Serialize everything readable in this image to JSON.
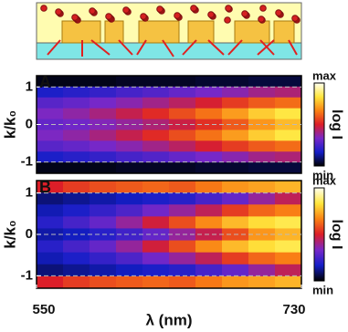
{
  "chart_data": [
    {
      "type": "heatmap",
      "panel_label": "A",
      "y_label": "k/k₀",
      "colorbar_label": "log I",
      "colorbar_max": "max",
      "colorbar_min": "min",
      "xlim": [
        550,
        730
      ],
      "ylim": [
        -1.3,
        1.3
      ],
      "yticks": [
        -1,
        0,
        1
      ],
      "grid": true,
      "z": [
        [
          0.02,
          0.02,
          0.02,
          0.03,
          0.03,
          0.03,
          0.04,
          0.04,
          0.05,
          0.05
        ],
        [
          0.18,
          0.2,
          0.22,
          0.25,
          0.27,
          0.3,
          0.33,
          0.36,
          0.4,
          0.42
        ],
        [
          0.28,
          0.3,
          0.33,
          0.36,
          0.4,
          0.44,
          0.49,
          0.55,
          0.6,
          0.63
        ],
        [
          0.34,
          0.37,
          0.41,
          0.46,
          0.52,
          0.58,
          0.64,
          0.71,
          0.79,
          0.84
        ],
        [
          0.3,
          0.32,
          0.35,
          0.38,
          0.42,
          0.47,
          0.53,
          0.6,
          0.7,
          0.76
        ],
        [
          0.34,
          0.37,
          0.41,
          0.46,
          0.52,
          0.58,
          0.64,
          0.71,
          0.79,
          0.84
        ],
        [
          0.28,
          0.3,
          0.33,
          0.36,
          0.4,
          0.44,
          0.49,
          0.55,
          0.6,
          0.63
        ],
        [
          0.18,
          0.2,
          0.22,
          0.25,
          0.27,
          0.3,
          0.33,
          0.36,
          0.4,
          0.42
        ],
        [
          0.02,
          0.02,
          0.02,
          0.03,
          0.03,
          0.03,
          0.04,
          0.04,
          0.05,
          0.05
        ]
      ]
    },
    {
      "type": "heatmap",
      "panel_label": "B",
      "y_label": "k/k₀",
      "colorbar_label": "log I",
      "colorbar_max": "max",
      "colorbar_min": "min",
      "x_label": "λ (nm)",
      "xlim": [
        550,
        730
      ],
      "xticks": [
        550,
        730
      ],
      "ylim": [
        -1.3,
        1.3
      ],
      "yticks": [
        -1,
        0,
        1
      ],
      "grid": true,
      "z": [
        [
          0.5,
          0.55,
          0.58,
          0.6,
          0.62,
          0.6,
          0.65,
          0.7,
          0.72,
          0.75
        ],
        [
          0.1,
          0.12,
          0.14,
          0.16,
          0.18,
          0.2,
          0.25,
          0.3,
          0.38,
          0.45
        ],
        [
          0.15,
          0.18,
          0.22,
          0.26,
          0.32,
          0.38,
          0.45,
          0.55,
          0.62,
          0.66
        ],
        [
          0.2,
          0.25,
          0.3,
          0.38,
          0.48,
          0.58,
          0.68,
          0.76,
          0.82,
          0.85
        ],
        [
          0.14,
          0.16,
          0.2,
          0.24,
          0.3,
          0.38,
          0.46,
          0.58,
          0.7,
          0.75
        ],
        [
          0.2,
          0.25,
          0.3,
          0.38,
          0.48,
          0.58,
          0.68,
          0.76,
          0.82,
          0.85
        ],
        [
          0.15,
          0.18,
          0.22,
          0.26,
          0.32,
          0.38,
          0.45,
          0.55,
          0.62,
          0.66
        ],
        [
          0.1,
          0.12,
          0.14,
          0.16,
          0.18,
          0.2,
          0.25,
          0.3,
          0.38,
          0.45
        ],
        [
          0.5,
          0.55,
          0.58,
          0.6,
          0.62,
          0.6,
          0.65,
          0.7,
          0.72,
          0.75
        ]
      ]
    }
  ]
}
